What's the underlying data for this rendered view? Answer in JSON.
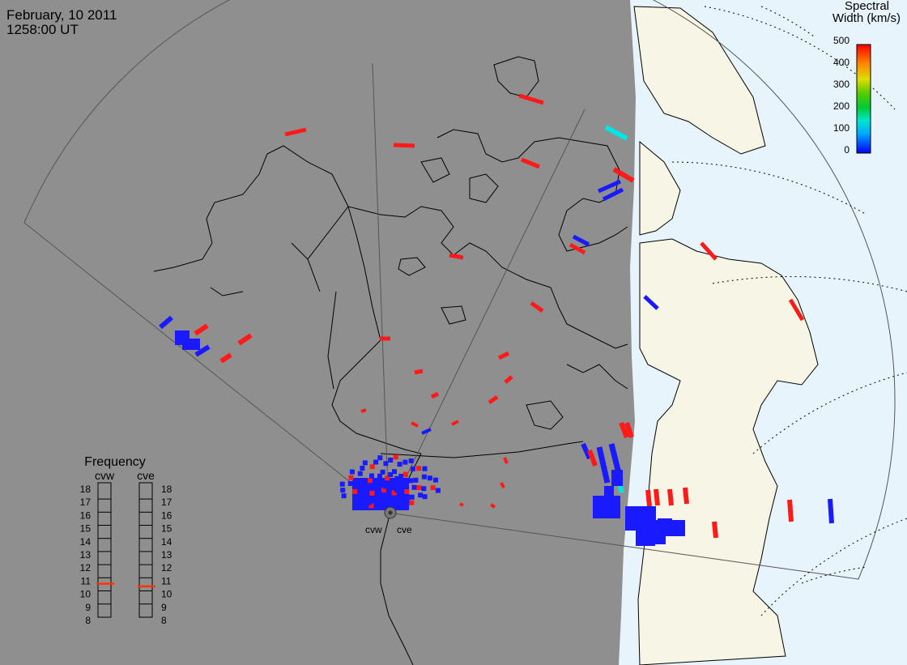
{
  "header": {
    "date": "February, 10 2011",
    "time": "1258:00 UT"
  },
  "colorbar": {
    "title_line1": "Spectral",
    "title_line2": "Width (km/s)",
    "ticks": [
      "500",
      "400",
      "300",
      "200",
      "100",
      "0"
    ]
  },
  "frequency_panel": {
    "title": "Frequency",
    "radars": [
      "cvw",
      "cve"
    ],
    "scale": [
      "18",
      "17",
      "16",
      "15",
      "14",
      "13",
      "12",
      "11",
      "10",
      "9",
      "8"
    ],
    "cvw_value": 10.8,
    "cve_value": 10.6,
    "marker_color": "#ff3300"
  },
  "radar_labels": [
    "cvw",
    "cve"
  ],
  "colors": {
    "night": "#8f8f8f",
    "land_day": "#f7f5e6",
    "sea_day": "#e8f4fb",
    "low_width": "#1a1aff",
    "high_width": "#ff1a1a",
    "mid_width": "#00e6e6"
  }
}
